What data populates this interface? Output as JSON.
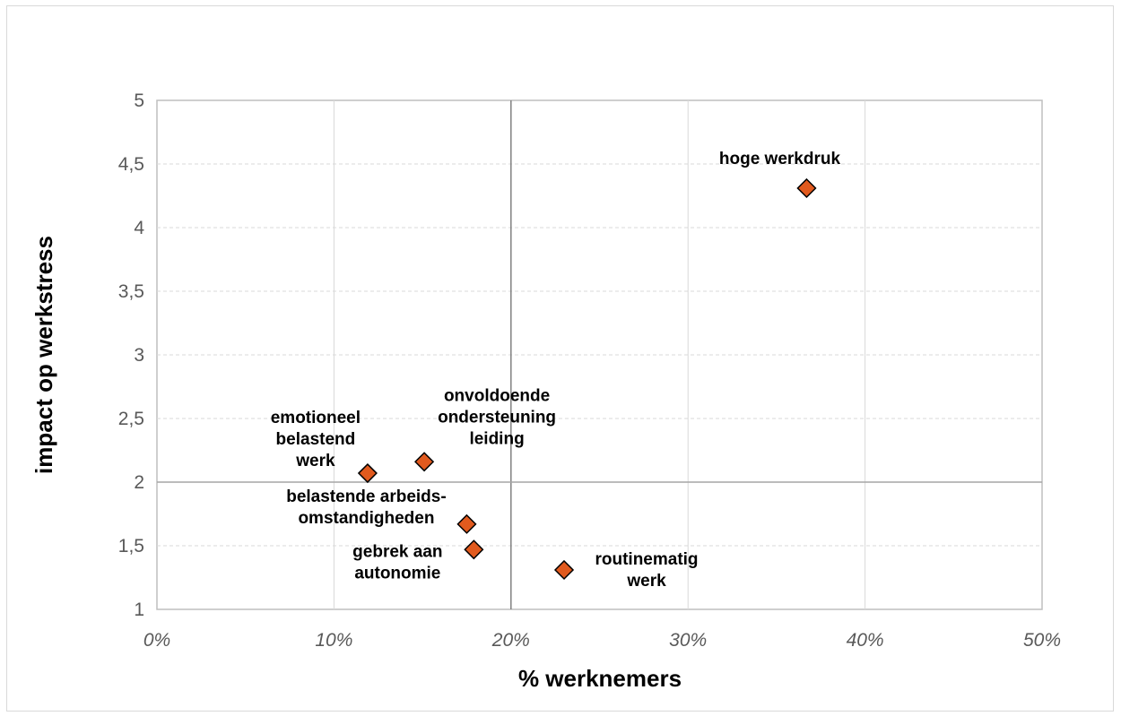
{
  "chart_data": {
    "type": "scatter",
    "xlabel": "% werknemers",
    "ylabel": "impact op werkstress",
    "xlim": [
      0,
      0.5
    ],
    "ylim": [
      1,
      5
    ],
    "x_ticks": [
      0,
      0.1,
      0.2,
      0.3,
      0.4,
      0.5
    ],
    "x_tick_labels": [
      "0%",
      "10%",
      "20%",
      "30%",
      "40%",
      "50%"
    ],
    "y_ticks": [
      1,
      1.5,
      2,
      2.5,
      3,
      3.5,
      4,
      4.5,
      5
    ],
    "y_tick_labels": [
      "1",
      "1,5",
      "2",
      "2,5",
      "3",
      "3,5",
      "4",
      "4,5",
      "5"
    ],
    "reference_lines": {
      "x": 0.2,
      "y": 2
    },
    "grid": true,
    "marker": "diamond",
    "marker_color": "#E15A1E",
    "points": [
      {
        "label": [
          "hoge werkdruk"
        ],
        "x": 0.367,
        "y": 4.31
      },
      {
        "label": [
          "onvoldoende",
          "ondersteuning",
          "leiding"
        ],
        "x": 0.151,
        "y": 2.16
      },
      {
        "label": [
          "emotioneel",
          "belastend",
          "werk"
        ],
        "x": 0.119,
        "y": 2.07
      },
      {
        "label": [
          "belastende arbeids-",
          "omstandigheden"
        ],
        "x": 0.175,
        "y": 1.67
      },
      {
        "label": [
          "gebrek aan",
          "autonomie"
        ],
        "x": 0.179,
        "y": 1.47
      },
      {
        "label": [
          "routinematig",
          "werk"
        ],
        "x": 0.23,
        "y": 1.31
      }
    ]
  }
}
